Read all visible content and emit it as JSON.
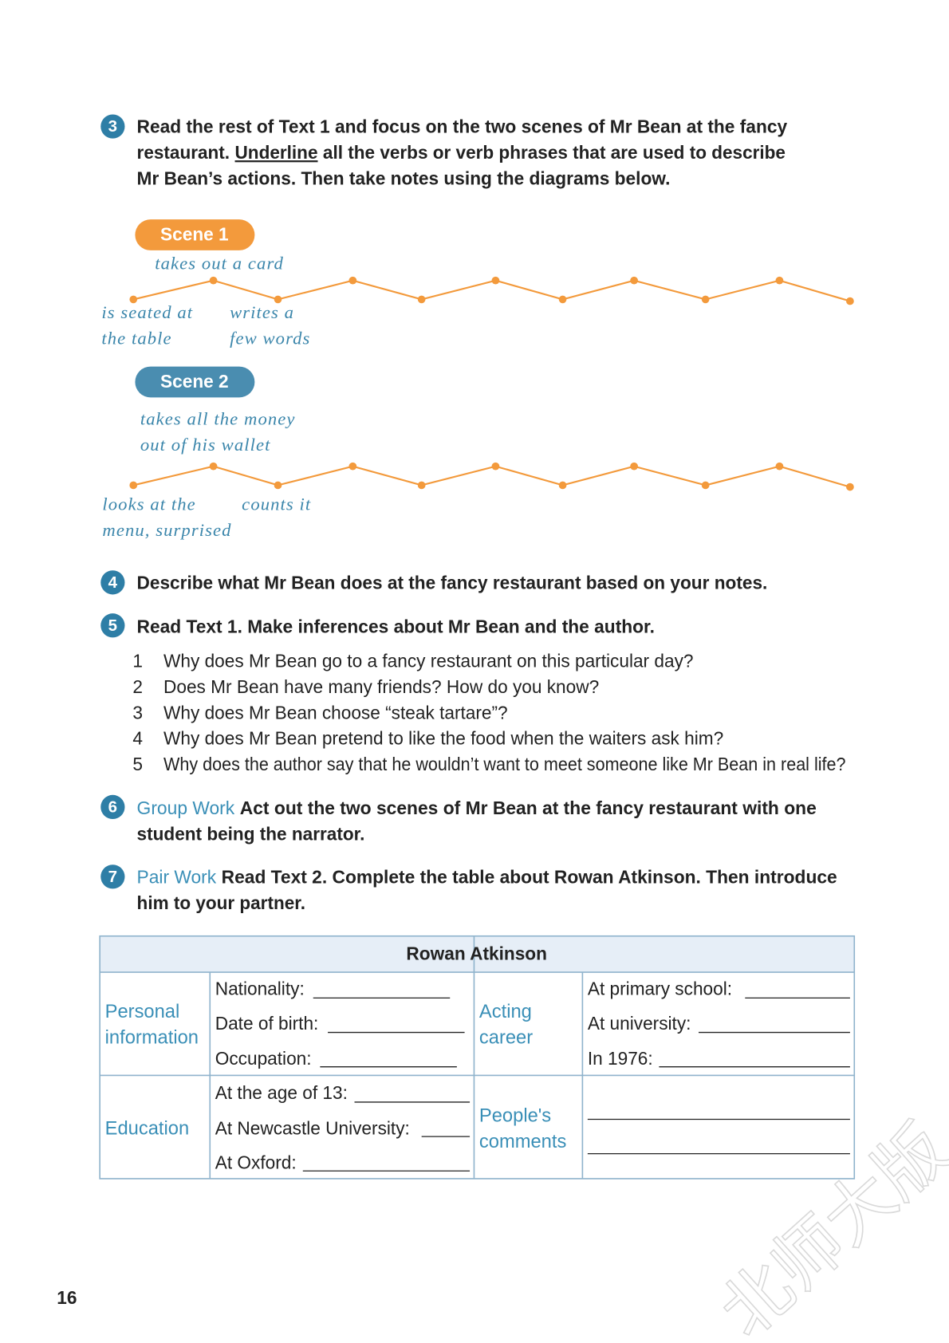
{
  "task_3": {
    "number": "3",
    "line_1": "Read the rest of Text 1 and focus on the two scenes of Mr Bean at the fancy",
    "line_2_before": "restaurant.",
    "underlined": "Underline",
    "line_2_after": "all the verbs or verb phrases that are used to describe",
    "line_3": "Mr Bean’s actions. Then take notes using the diagrams below."
  },
  "scene_1": {
    "label": "Scene 1",
    "top_note": [
      "takes out a card"
    ],
    "left_note": [
      "is seated at",
      "the table"
    ],
    "middle_note": [
      "writes a",
      "few words"
    ]
  },
  "scene_2": {
    "label": "Scene 2",
    "top_note": [
      "takes all the money",
      "out of his wallet"
    ],
    "left_note": [
      "looks at the",
      "menu, surprised"
    ],
    "middle_note": [
      "counts it"
    ]
  },
  "task_4": {
    "number": "4",
    "text": "Describe what Mr Bean does at the fancy restaurant based on your notes."
  },
  "task_5": {
    "number": "5",
    "text": "Read Text 1. Make inferences about Mr Bean and the author.",
    "questions": [
      {
        "number": "1",
        "text": "Why does Mr Bean go to a fancy restaurant on this particular day?"
      },
      {
        "number": "2",
        "text": "Does Mr Bean have many friends? How do you know?"
      },
      {
        "number": "3",
        "text": "Why does Mr Bean choose “steak tartare”?"
      },
      {
        "number": "4",
        "text": "Why does Mr Bean pretend to like the food when the waiters ask him?"
      },
      {
        "number": "5",
        "text": "Why does the author say that he wouldn’t want to meet someone like Mr Bean in real life?"
      }
    ]
  },
  "task_6": {
    "number": "6",
    "label": "Group Work",
    "lines": [
      "Act out the two scenes of Mr Bean at the fancy restaurant with one",
      "student being the narrator."
    ]
  },
  "task_7": {
    "number": "7",
    "label": "Pair Work",
    "lines": [
      "Read Text 2. Complete the table about Rowan Atkinson. Then introduce",
      "him to your partner."
    ]
  },
  "table": {
    "title": "Rowan Atkinson",
    "personal": {
      "heading": [
        "Personal",
        "information"
      ],
      "fields": [
        "Nationality:",
        "Date of birth:",
        "Occupation:"
      ]
    },
    "acting": {
      "heading": [
        "Acting",
        "career"
      ],
      "fields": [
        "At primary school:",
        "At university:",
        "In 1976:"
      ]
    },
    "education": {
      "heading": [
        "Education"
      ],
      "fields": [
        "At the age of 13:",
        "At Newcastle University:",
        "At Oxford:"
      ]
    },
    "comments": {
      "heading": [
        "People's",
        "comments"
      ]
    }
  },
  "page_number": "16",
  "watermark": "北师大版"
}
